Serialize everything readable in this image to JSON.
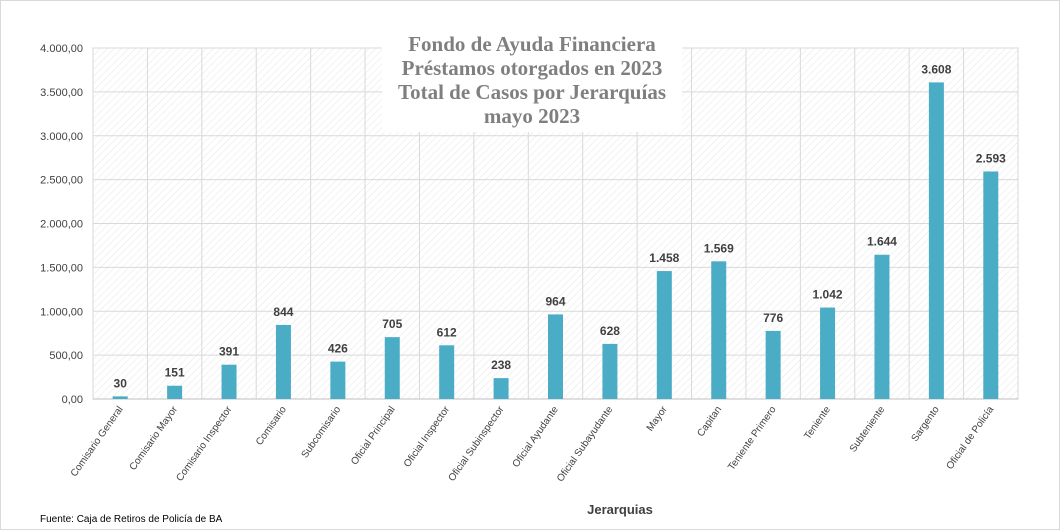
{
  "chart_data": {
    "type": "bar",
    "title_lines": [
      "Fondo de Ayuda Financiera",
      "Préstamos otorgados en 2023",
      "Total de Casos por Jerarquías",
      "mayo 2023"
    ],
    "xlabel": "Jerarquias",
    "ylabel": "",
    "ylim": [
      0,
      4000
    ],
    "yticks": [
      "0,00",
      "500,00",
      "1.000,00",
      "1.500,00",
      "2.000,00",
      "2.500,00",
      "3.000,00",
      "3.500,00",
      "4.000,00"
    ],
    "categories": [
      "Comisario General",
      "Comisario Mayor",
      "Comisario Inspector",
      "Comisario",
      "Subcomisario",
      "Oficial Principal",
      "Oficial Inspector",
      "Oficial Subinspector",
      "Oficial Ayudante",
      "Oficial Subayudante",
      "Mayor",
      "Capitan",
      "Teniente Primero",
      "Teniente",
      "Subteniente",
      "Sargento",
      "Oficial de Policía"
    ],
    "values": [
      30,
      151,
      391,
      844,
      426,
      705,
      612,
      238,
      964,
      628,
      1458,
      1569,
      776,
      1042,
      1644,
      3608,
      2593
    ],
    "data_labels": [
      "30",
      "151",
      "391",
      "844",
      "426",
      "705",
      "612",
      "238",
      "964",
      "628",
      "1.458",
      "1.569",
      "776",
      "1.042",
      "1.644",
      "3.608",
      "2.593"
    ],
    "bar_color": "#4bacc6",
    "grid": true,
    "legend": "none"
  },
  "footer": {
    "source": "Fuente: Caja de Retiros de Policía de BA"
  }
}
